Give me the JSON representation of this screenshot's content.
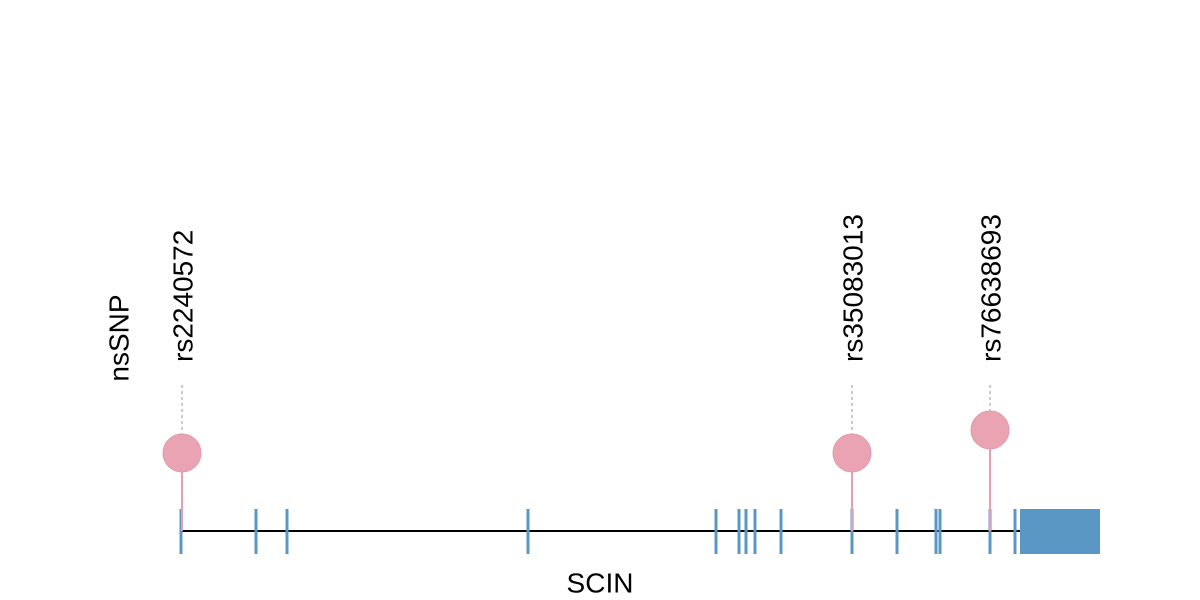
{
  "track_label": "nsSNP",
  "gene": {
    "name": "SCIN"
  },
  "snps": [
    {
      "label": "rs2240572"
    },
    {
      "label": "rs35083013"
    },
    {
      "label": "rs76638693"
    }
  ]
}
